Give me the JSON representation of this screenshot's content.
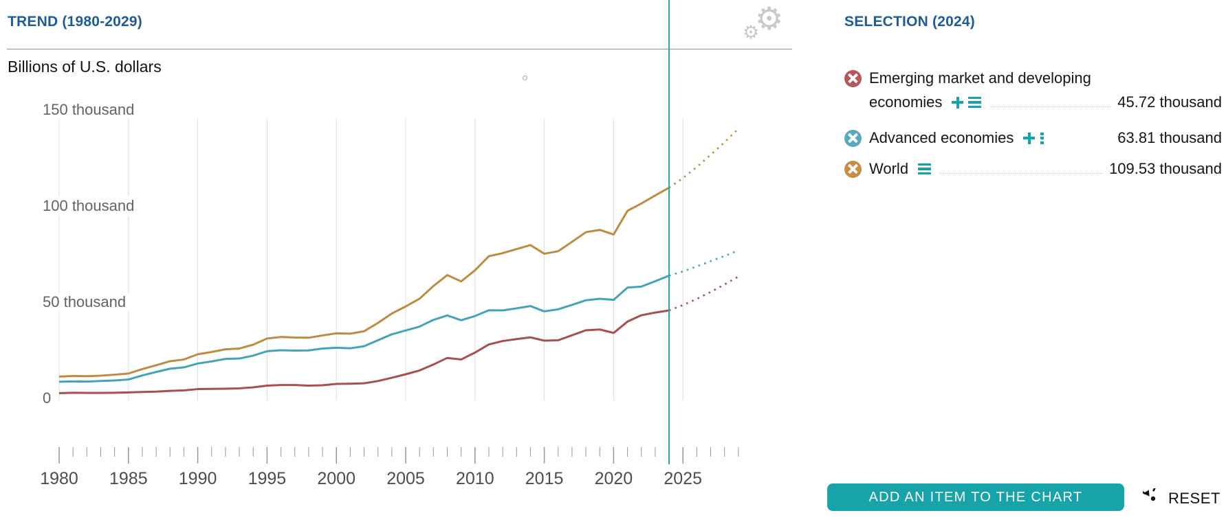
{
  "header": {
    "trend_title": "TREND (1980-2029)",
    "selection_title": "SELECTION (2024)",
    "unit_label": "Billions of U.S. dollars"
  },
  "chart_data": {
    "type": "line",
    "title": "TREND (1980-2029)",
    "ylabel": "Billions of U.S. dollars",
    "xlabel": "",
    "x_start_year": 1980,
    "x_end_year": 2029,
    "selection_year": 2024,
    "projection_from_year": 2024,
    "ylim_thousands": [
      0,
      150
    ],
    "yticks": [
      {
        "value": 0,
        "label": "0"
      },
      {
        "value": 50,
        "label": "50 thousand"
      },
      {
        "value": 100,
        "label": "100 thousand"
      },
      {
        "value": 150,
        "label": "150 thousand"
      }
    ],
    "xticks_major": [
      1980,
      1985,
      1990,
      1995,
      2000,
      2005,
      2010,
      2015,
      2020,
      2025
    ],
    "grid": "vertical-only",
    "legend_position": "right-panel",
    "series": [
      {
        "name": "Emerging market and developing economies",
        "color": "#A9504C",
        "value_2024_label": "45.72 thousand",
        "values_thousands": [
          2.7,
          2.9,
          2.8,
          2.8,
          2.9,
          3.1,
          3.3,
          3.5,
          3.9,
          4.1,
          4.8,
          4.9,
          5.0,
          5.2,
          5.7,
          6.6,
          6.9,
          6.9,
          6.6,
          6.8,
          7.5,
          7.6,
          7.8,
          9.0,
          10.7,
          12.5,
          14.5,
          17.6,
          21.0,
          20.2,
          23.8,
          28.0,
          29.8,
          30.8,
          31.7,
          30.0,
          30.2,
          32.8,
          35.4,
          35.8,
          34.0,
          39.9,
          43.2,
          44.6,
          45.72,
          48.5,
          51.7,
          55.3,
          59.2,
          63.3
        ]
      },
      {
        "name": "Advanced economies",
        "color": "#44A4B5",
        "value_2024_label": "63.81 thousand",
        "values_thousands": [
          8.6,
          8.8,
          8.7,
          9.0,
          9.3,
          9.8,
          11.9,
          13.7,
          15.4,
          16.1,
          18.1,
          19.2,
          20.5,
          20.7,
          22.2,
          24.5,
          25.0,
          24.8,
          24.9,
          25.9,
          26.3,
          26.0,
          27.1,
          30.2,
          33.3,
          35.3,
          37.3,
          40.8,
          43.1,
          40.6,
          42.8,
          45.8,
          45.7,
          46.8,
          48.0,
          45.2,
          46.3,
          48.6,
          51.0,
          51.8,
          51.2,
          57.6,
          58.1,
          60.9,
          63.81,
          66.0,
          68.6,
          71.3,
          74.0,
          76.9
        ]
      },
      {
        "name": "World",
        "color": "#BF8B40",
        "value_2024_label": "109.53 thousand",
        "values_thousands": [
          11.3,
          11.6,
          11.5,
          11.8,
          12.3,
          12.9,
          15.2,
          17.2,
          19.3,
          20.2,
          22.9,
          24.1,
          25.5,
          25.9,
          27.9,
          31.1,
          31.9,
          31.6,
          31.5,
          32.7,
          33.8,
          33.6,
          34.9,
          39.2,
          44.1,
          47.8,
          51.8,
          58.4,
          64.1,
          60.8,
          66.6,
          73.9,
          75.5,
          77.6,
          79.7,
          75.2,
          76.5,
          81.4,
          86.4,
          87.6,
          85.2,
          97.5,
          101.3,
          105.5,
          109.53,
          114.5,
          120.3,
          126.6,
          133.2,
          140.2
        ]
      }
    ]
  },
  "legend": {
    "items": [
      {
        "label_line1": "Emerging market and developing",
        "label_line2": "economies",
        "value": "45.72 thousand",
        "color": "#B3595B",
        "icons": [
          "add-icon",
          "list-icon"
        ]
      },
      {
        "label": "Advanced economies",
        "value": "63.81 thousand",
        "color": "#58A9BF",
        "icons": [
          "add-icon",
          "menu-dots-icon"
        ]
      },
      {
        "label": "World",
        "value": "109.53 thousand",
        "color": "#CB8C43",
        "icons": [
          "list-icon"
        ]
      }
    ]
  },
  "footer": {
    "add_button_label": "ADD AN ITEM TO THE CHART",
    "reset_label": "RESET"
  },
  "colors": {
    "accent_teal": "#16A3A9",
    "selection_line": "#2EA3B8",
    "heading_blue": "#1E5B99",
    "gridline": "#dcdcdc"
  }
}
